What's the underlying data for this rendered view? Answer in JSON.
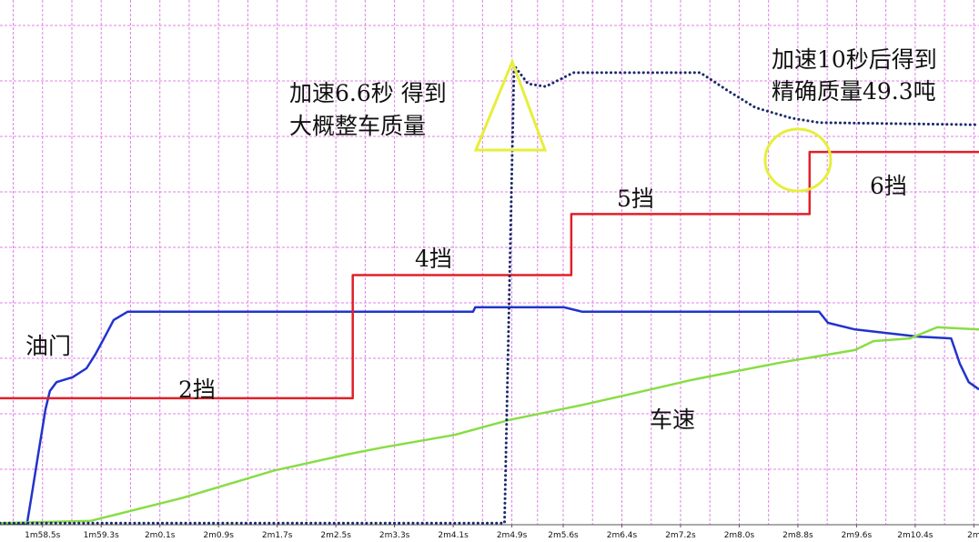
{
  "chart_data": {
    "type": "line",
    "xlim": [
      117.92,
      131.27
    ],
    "ylim": [
      0,
      9.46
    ],
    "xticks": [
      {
        "value": 118.5,
        "label": "1m58.5s"
      },
      {
        "value": 119.3,
        "label": "1m59.3s"
      },
      {
        "value": 120.1,
        "label": "2m0.1s"
      },
      {
        "value": 120.9,
        "label": "2m0.9s"
      },
      {
        "value": 121.7,
        "label": "2m1.7s"
      },
      {
        "value": 122.5,
        "label": "2m2.5s"
      },
      {
        "value": 123.3,
        "label": "2m3.3s"
      },
      {
        "value": 124.1,
        "label": "2m4.1s"
      },
      {
        "value": 124.9,
        "label": "2m4.9s"
      },
      {
        "value": 125.6,
        "label": "2m5.6s"
      },
      {
        "value": 126.4,
        "label": "2m6.4s"
      },
      {
        "value": 127.2,
        "label": "2m7.2s"
      },
      {
        "value": 128.0,
        "label": "2m8.0s"
      },
      {
        "value": 128.8,
        "label": "2m8.8s"
      },
      {
        "value": 129.6,
        "label": "2m9.6s"
      },
      {
        "value": 130.4,
        "label": "2m10.4s"
      },
      {
        "value": 131.2,
        "label": "2m"
      }
    ],
    "grid": true,
    "series": [
      {
        "name": "油门",
        "color": "#2233cc",
        "x": [
          117.92,
          118.29,
          118.35,
          118.44,
          118.54,
          118.6,
          118.69,
          118.91,
          119.1,
          119.22,
          119.35,
          119.47,
          119.66,
          124.37,
          124.4,
          125.61,
          125.86,
          129.09,
          129.21,
          129.58,
          130.45,
          130.89,
          131.01,
          131.13,
          131.27
        ],
        "values": [
          0.03,
          0.03,
          0.52,
          1.26,
          2.08,
          2.41,
          2.57,
          2.66,
          2.82,
          3.07,
          3.39,
          3.69,
          3.84,
          3.84,
          3.92,
          3.92,
          3.84,
          3.84,
          3.64,
          3.52,
          3.39,
          3.36,
          2.9,
          2.57,
          2.44
        ]
      },
      {
        "color": "#e0202a",
        "x": [
          117.92,
          122.73,
          122.73,
          125.71,
          125.71,
          128.96,
          128.96,
          131.27
        ],
        "values": [
          2.28,
          2.28,
          4.5,
          4.5,
          5.6,
          5.6,
          6.72,
          6.72
        ]
      },
      {
        "name": "车速",
        "color": "#88dd44",
        "x": [
          117.92,
          119.16,
          120.4,
          121.64,
          122.63,
          123.13,
          124.12,
          124.87,
          125.86,
          126.6,
          127.35,
          127.85,
          128.59,
          129.58,
          129.83,
          130.33,
          130.7,
          131.27
        ],
        "values": [
          0.03,
          0.07,
          0.48,
          0.97,
          1.26,
          1.39,
          1.62,
          1.89,
          2.16,
          2.38,
          2.61,
          2.74,
          2.93,
          3.15,
          3.31,
          3.36,
          3.56,
          3.52
        ]
      },
      {
        "color": "#1a2a6a",
        "dotted": true,
        "x": [
          117.92,
          124.8,
          124.93,
          125.12,
          125.36,
          125.74,
          127.47,
          127.85,
          128.22,
          128.71,
          129.09,
          131.27
        ],
        "values": [
          0.03,
          0.03,
          8.28,
          7.95,
          7.9,
          8.15,
          8.15,
          7.82,
          7.52,
          7.33,
          7.25,
          7.21
        ]
      }
    ],
    "annotations": [
      [
        "加速6.6秒  得到",
        "大概整车质量"
      ],
      [
        "加速10秒后得到",
        "精确质量49.3吨"
      ]
    ],
    "gear_labels": [
      "2挡",
      "4挡",
      "5挡",
      "6挡"
    ]
  }
}
